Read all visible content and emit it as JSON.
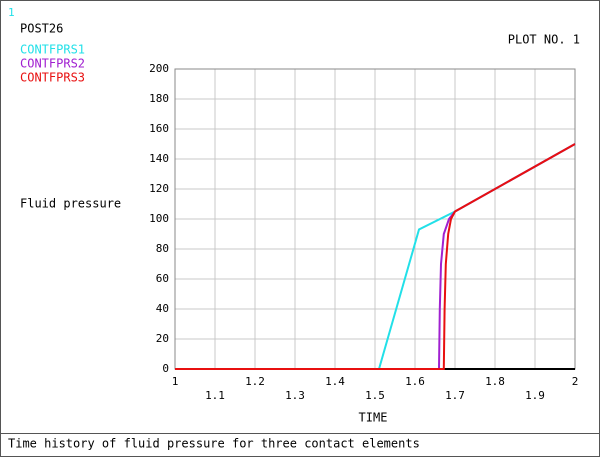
{
  "chart_data": {
    "type": "line",
    "window_number": "1",
    "header": "POST26",
    "plot_label": "PLOT NO.  1",
    "ylabel": "Fluid pressure",
    "xlabel": "TIME",
    "caption": "Time history of fluid pressure for three contact elements",
    "xlim": [
      1,
      2
    ],
    "ylim": [
      0,
      200
    ],
    "xticks": [
      1,
      1.1,
      1.2,
      1.3,
      1.4,
      1.5,
      1.6,
      1.7,
      1.8,
      1.9,
      2
    ],
    "yticks": [
      0,
      20,
      40,
      60,
      80,
      100,
      120,
      140,
      160,
      180,
      200
    ],
    "grid": true,
    "series": [
      {
        "name": "CONTFPRS1",
        "color": "#22e0e8",
        "x": [
          1,
          1.51,
          1.61,
          1.7,
          2
        ],
        "values": [
          0,
          0,
          93,
          105,
          150
        ]
      },
      {
        "name": "CONTFPRS2",
        "color": "#a020d0",
        "x": [
          1,
          1.66,
          1.662,
          1.665,
          1.672,
          1.685,
          1.7,
          2
        ],
        "values": [
          0,
          0,
          40,
          70,
          90,
          100,
          105,
          150
        ]
      },
      {
        "name": "CONTFPRS3",
        "color": "#e81010",
        "x": [
          1,
          1.672,
          1.674,
          1.677,
          1.683,
          1.69,
          1.7,
          2
        ],
        "values": [
          0,
          0,
          40,
          70,
          90,
          100,
          105,
          150
        ]
      }
    ]
  }
}
